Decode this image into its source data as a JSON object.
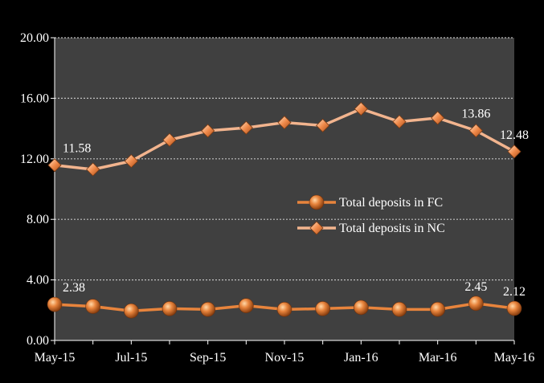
{
  "chart_data": {
    "type": "line",
    "x": [
      "May-15",
      "Jun-15",
      "Jul-15",
      "Aug-15",
      "Sep-15",
      "Oct-15",
      "Nov-15",
      "Dec-15",
      "Jan-16",
      "Feb-16",
      "Mar-16",
      "Apr-16",
      "May-16"
    ],
    "x_tick_labels": [
      "May-15",
      "",
      "Jul-15",
      "",
      "Sep-15",
      "",
      "Nov-15",
      "",
      "Jan-16",
      "",
      "Mar-16",
      "",
      "May-16"
    ],
    "y_tick_labels": [
      "0.00",
      "4.00",
      "8.00",
      "12.00",
      "16.00",
      "20.00"
    ],
    "ylim": [
      0,
      20
    ],
    "grid": true,
    "legend_position": "right-middle",
    "series": [
      {
        "name": "Total deposits in FC",
        "marker": "circle",
        "color": "#e8843c",
        "values": [
          2.38,
          2.25,
          1.95,
          2.1,
          2.05,
          2.3,
          2.05,
          2.1,
          2.18,
          2.05,
          2.05,
          2.45,
          2.12
        ],
        "data_labels": [
          {
            "index": 0,
            "text": "2.38"
          },
          {
            "index": 11,
            "text": "2.45"
          },
          {
            "index": 12,
            "text": "2.12"
          }
        ]
      },
      {
        "name": "Total deposits in NC",
        "marker": "diamond",
        "color": "#f2b48e",
        "values": [
          11.58,
          11.3,
          11.85,
          13.25,
          13.85,
          14.05,
          14.4,
          14.2,
          15.3,
          14.45,
          14.7,
          13.86,
          12.48
        ],
        "data_labels": [
          {
            "index": 0,
            "text": "11.58"
          },
          {
            "index": 11,
            "text": "13.86"
          },
          {
            "index": 12,
            "text": "12.48"
          }
        ]
      }
    ],
    "colors": {
      "page_background": "#000000",
      "plot_background": "#404040",
      "gridline": "#bfbfbf",
      "axis_text": "#ffffff"
    }
  }
}
